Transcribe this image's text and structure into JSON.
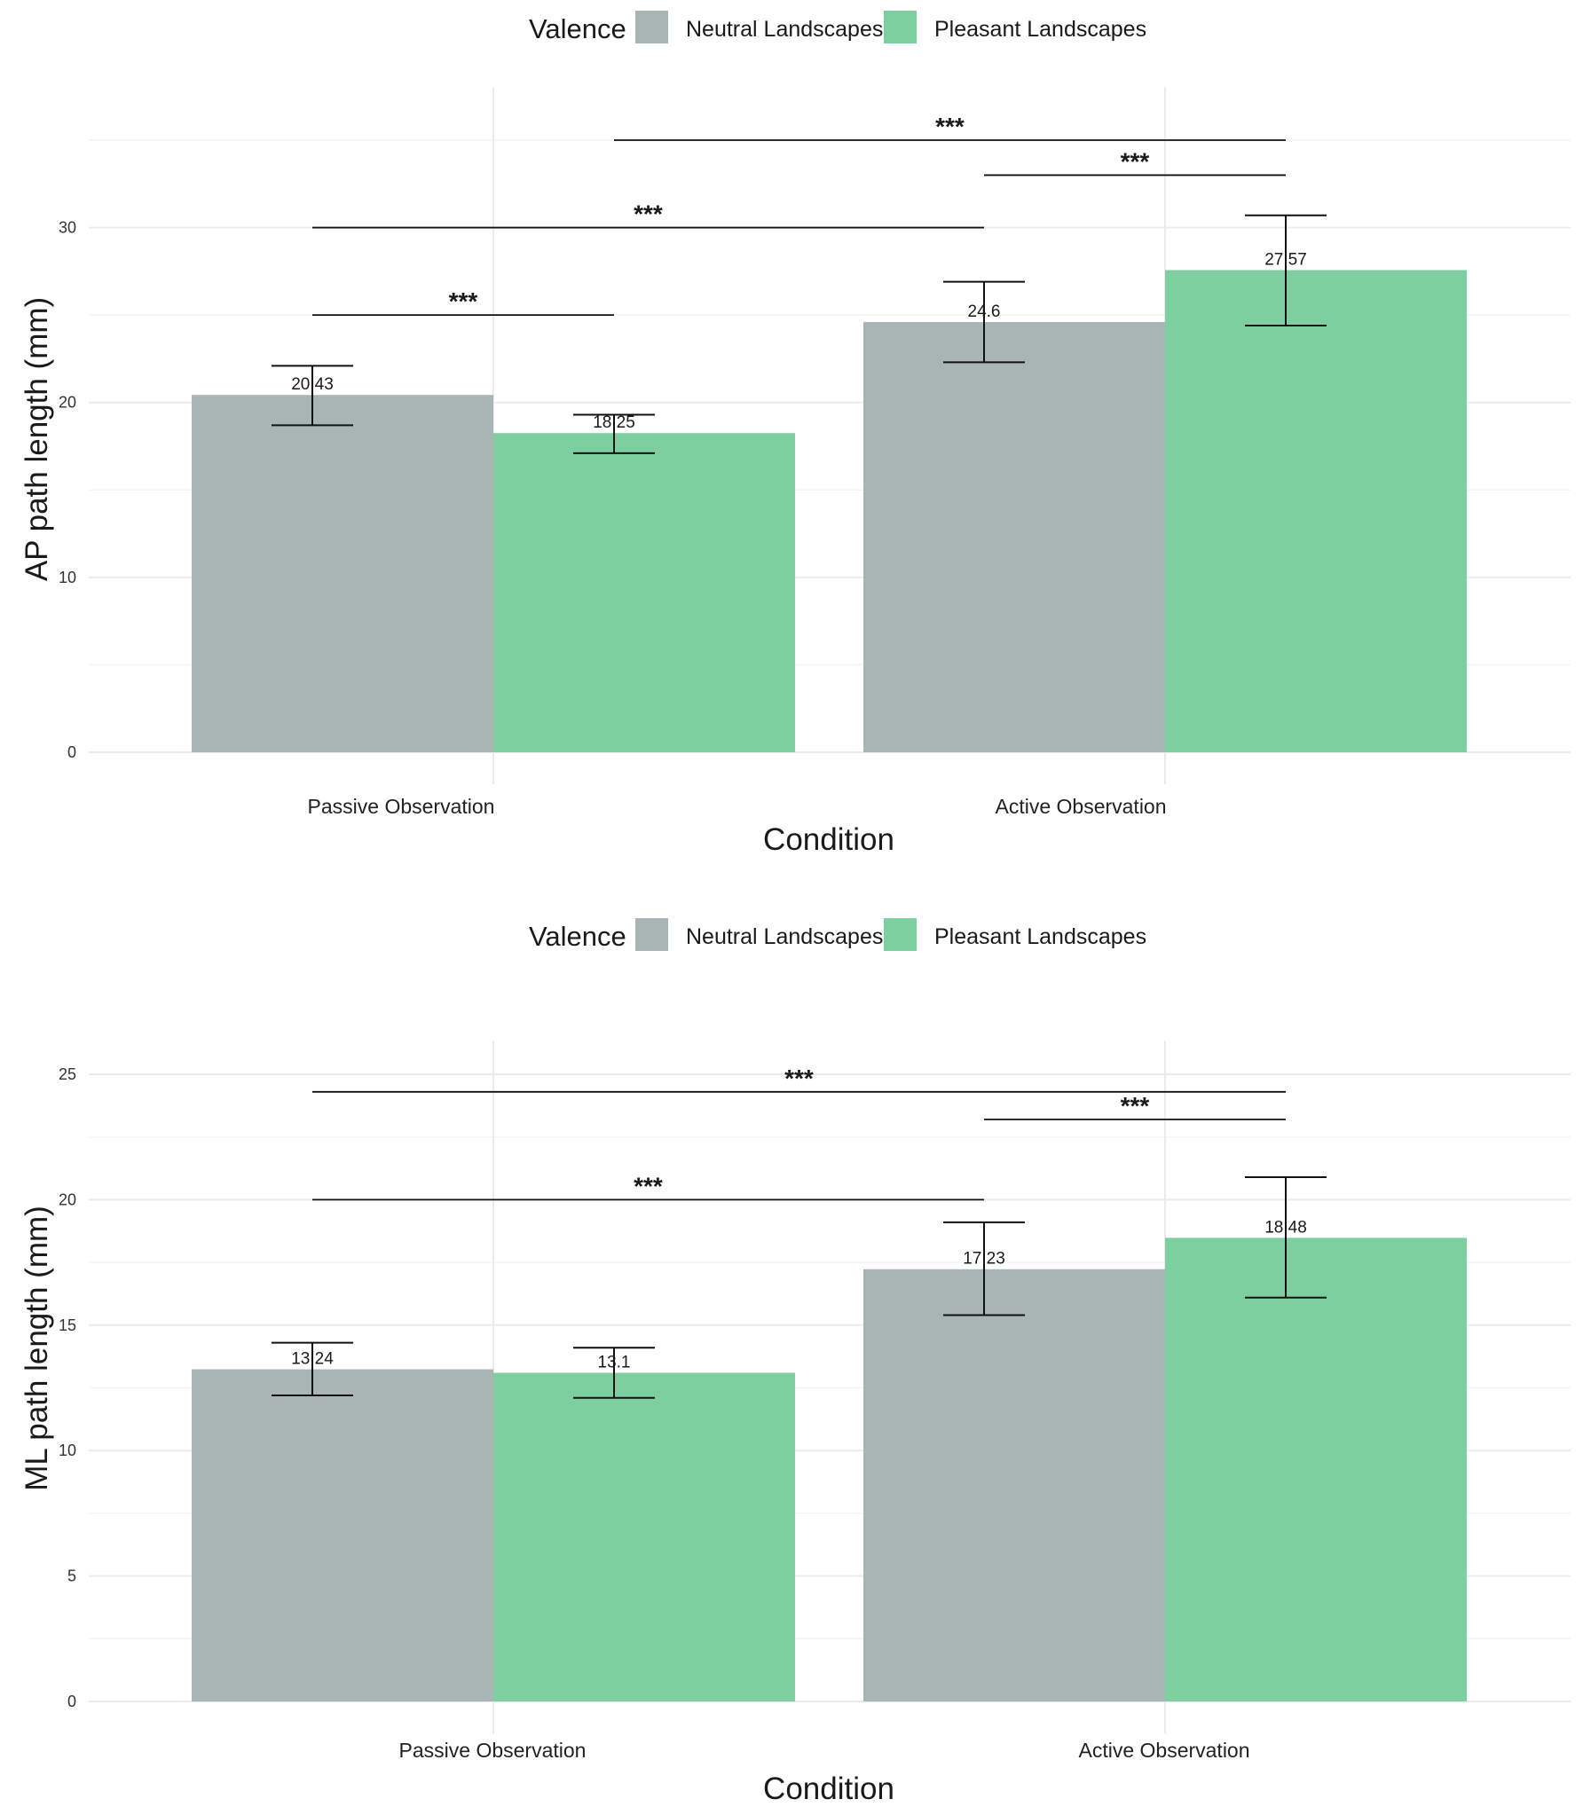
{
  "colors": {
    "neutral": "#a9b5b5",
    "pleasant": "#7dcfa0"
  },
  "chart_data": [
    {
      "type": "bar",
      "title": "",
      "legend_title": "Valence",
      "legend_position": "top",
      "xlabel": "Condition",
      "ylabel": "AP path length (mm)",
      "categories": [
        "Passive Observation",
        "Active Observation"
      ],
      "series": [
        {
          "name": "Neutral Landscapes",
          "values": [
            20.43,
            24.6
          ],
          "labels": [
            "20.43",
            "24.6"
          ],
          "err_low": [
            18.7,
            22.3
          ],
          "err_high": [
            22.1,
            26.9
          ]
        },
        {
          "name": "Pleasant Landscapes",
          "values": [
            18.25,
            27.57
          ],
          "labels": [
            "18.25",
            "27.57"
          ],
          "err_low": [
            17.1,
            24.4
          ],
          "err_high": [
            19.3,
            30.7
          ]
        }
      ],
      "ylim": [
        0,
        35
      ],
      "yticks": [
        0,
        10,
        20,
        30
      ],
      "significance": [
        {
          "label": "***",
          "from": [
            0,
            0
          ],
          "to": [
            0,
            1
          ],
          "y": 25
        },
        {
          "label": "***",
          "from": [
            0,
            0
          ],
          "to": [
            1,
            0
          ],
          "y": 30
        },
        {
          "label": "***",
          "from": [
            1,
            0
          ],
          "to": [
            1,
            1
          ],
          "y": 33
        },
        {
          "label": "***",
          "from": [
            0,
            1
          ],
          "to": [
            1,
            1
          ],
          "y": 35
        }
      ]
    },
    {
      "type": "bar",
      "title": "",
      "legend_title": "Valence",
      "legend_position": "top",
      "xlabel": "Condition",
      "ylabel": "ML path length (mm)",
      "categories": [
        "Passive Observation",
        "Active Observation"
      ],
      "series": [
        {
          "name": "Neutral Landscapes",
          "values": [
            13.24,
            17.23
          ],
          "labels": [
            "13.24",
            "17.23"
          ],
          "err_low": [
            12.2,
            15.4
          ],
          "err_high": [
            14.3,
            19.1
          ]
        },
        {
          "name": "Pleasant Landscapes",
          "values": [
            13.1,
            18.48
          ],
          "labels": [
            "13.1",
            "18.48"
          ],
          "err_low": [
            12.1,
            16.1
          ],
          "err_high": [
            14.1,
            20.9
          ]
        }
      ],
      "ylim": [
        0,
        25
      ],
      "yticks": [
        0,
        5,
        10,
        15,
        20,
        25
      ],
      "significance": [
        {
          "label": "***",
          "from": [
            0,
            0
          ],
          "to": [
            1,
            0
          ],
          "y": 20
        },
        {
          "label": "***",
          "from": [
            1,
            0
          ],
          "to": [
            1,
            1
          ],
          "y": 23.2
        },
        {
          "label": "***",
          "from": [
            0,
            0
          ],
          "to": [
            1,
            1
          ],
          "y": 24.3
        }
      ]
    }
  ]
}
